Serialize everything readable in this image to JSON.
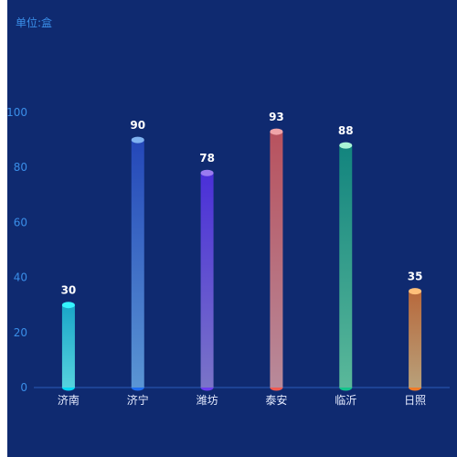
{
  "unit_label": "单位:盒",
  "colors": {
    "background": "#0f2a70",
    "axis_text": "#3a8ee8",
    "category_text": "#e6ecff",
    "axis_line": "#2b5cb8"
  },
  "chart_data": {
    "type": "bar",
    "categories": [
      "济南",
      "济宁",
      "潍坊",
      "泰安",
      "临沂",
      "日照"
    ],
    "values": [
      30,
      90,
      78,
      93,
      88,
      35
    ],
    "ylim": [
      0,
      100
    ],
    "yticks": [
      0,
      20,
      40,
      60,
      80,
      100
    ],
    "title": "",
    "xlabel": "",
    "ylabel": "单位:盒",
    "grid": false,
    "bar_style": "cylinder",
    "bar_colors": [
      {
        "top": "#1aa6c8",
        "bottom": "#56d2de",
        "cap": "#34f3ff",
        "base": "#00d7f5"
      },
      {
        "top": "#2447b8",
        "bottom": "#5a95d4",
        "cap": "#7fb2f0",
        "base": "#1e6cf0"
      },
      {
        "top": "#4a2fd8",
        "bottom": "#7a74c8",
        "cap": "#9a7bf0",
        "base": "#6b3df0"
      },
      {
        "top": "#b8525e",
        "bottom": "#b88a9a",
        "cap": "#f0a4a8",
        "base": "#f05a50"
      },
      {
        "top": "#12847e",
        "bottom": "#5ab89a",
        "cap": "#a9f5d6",
        "base": "#12c48c"
      },
      {
        "top": "#b8693c",
        "bottom": "#b8a07a",
        "cap": "#ffbf7a",
        "base": "#f07a28"
      }
    ]
  }
}
